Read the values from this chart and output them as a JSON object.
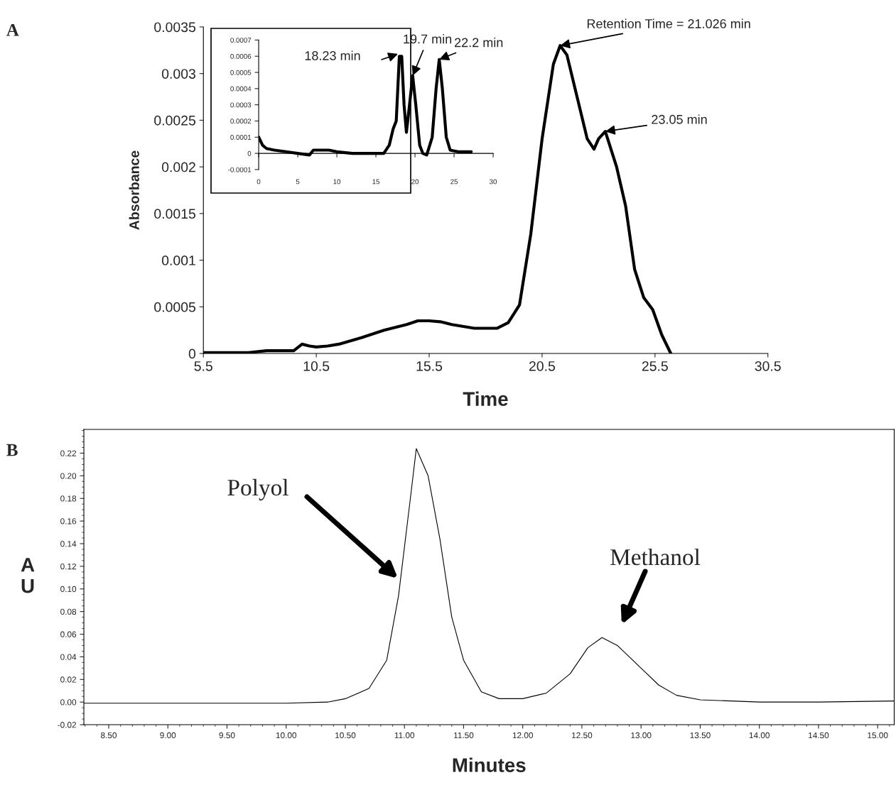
{
  "chart_data": [
    {
      "type": "line",
      "xlabel": "Time",
      "ylabel": "Absorbance",
      "xlim": [
        5.5,
        30.5
      ],
      "ylim": [
        0,
        0.0035
      ],
      "xticks": [
        5.5,
        10.5,
        15.5,
        20.5,
        25.5,
        30.5
      ],
      "yticks": [
        0,
        0.0005,
        0.001,
        0.0015,
        0.002,
        0.0025,
        0.003,
        0.0035
      ],
      "series": [
        {
          "color": "#000000",
          "x": [
            5.5,
            6.5,
            7.5,
            8.3,
            8.8,
            9.5,
            9.87,
            10.2,
            10.5,
            11.0,
            11.5,
            12.5,
            13.5,
            14.5,
            15.0,
            15.5,
            16.0,
            16.5,
            17.5,
            18.5,
            19.0,
            19.5,
            20.0,
            20.5,
            21.0,
            21.3,
            21.6,
            22.0,
            22.5,
            22.8,
            23.0,
            23.3,
            23.8,
            24.2,
            24.6,
            25.0,
            25.4,
            25.8,
            26.2
          ],
          "values": [
            1e-05,
            1e-05,
            1e-05,
            3e-05,
            3e-05,
            3e-05,
            0.0001,
            8e-05,
            7e-05,
            8e-05,
            0.0001,
            0.00017,
            0.00025,
            0.00031,
            0.00035,
            0.00035,
            0.00034,
            0.00031,
            0.00027,
            0.00027,
            0.00033,
            0.00052,
            0.00128,
            0.0023,
            0.0031,
            0.0033,
            0.0032,
            0.0028,
            0.0023,
            0.00219,
            0.0023,
            0.00238,
            0.002,
            0.00158,
            0.0009,
            0.0006,
            0.00047,
            0.0002,
            0
          ]
        }
      ],
      "annotations": [
        "A",
        {
          "text": "Retention Time = 21.026 min",
          "x": 21.3,
          "y": 0.0033
        },
        {
          "text": "23.05 min",
          "x": 23.3,
          "y": 0.00238
        }
      ]
    },
    {
      "type": "line",
      "xlim": [
        0,
        30
      ],
      "ylim": [
        -0.0001,
        0.0007
      ],
      "xticks": [
        0,
        5,
        10,
        15,
        20,
        25,
        30
      ],
      "yticks": [
        -0.0001,
        0,
        0.0001,
        0.0002,
        0.0003,
        0.0004,
        0.0005,
        0.0006,
        0.0007
      ],
      "series": [
        {
          "color": "#000000",
          "x": [
            0,
            0.5,
            1,
            2,
            3.5,
            5,
            6.5,
            7,
            8,
            9,
            10,
            12,
            14,
            16,
            16.7,
            17.2,
            17.6,
            18.0,
            18.3,
            18.6,
            18.9,
            19.3,
            19.7,
            20.1,
            20.6,
            21.0,
            21.5,
            22.2,
            22.7,
            23.1,
            23.5,
            24.0,
            24.5,
            25.5,
            27.2
          ],
          "values": [
            0.0001,
            5e-05,
            3e-05,
            2e-05,
            1e-05,
            0,
            -1e-05,
            2e-05,
            2e-05,
            2e-05,
            1e-05,
            0,
            0,
            0,
            5e-05,
            0.00015,
            0.0002,
            0.0006,
            0.0006,
            0.0003,
            0.00013,
            0.0003,
            0.00048,
            0.0003,
            5e-05,
            0,
            -1e-05,
            0.0001,
            0.0004,
            0.00058,
            0.0004,
            0.0001,
            2e-05,
            1e-05,
            1e-05
          ]
        }
      ],
      "annotations": [
        "18.23 min",
        {
          "text": "19.7 min",
          "x": 19.7,
          "y": 0.00048
        },
        {
          "text": "22.2 min",
          "x": 23.1,
          "y": 0.00058
        }
      ]
    },
    {
      "type": "line",
      "xlabel": "Minutes",
      "ylabel": "A\nU",
      "xlim": [
        8.29,
        15.14
      ],
      "ylim": [
        -0.02,
        0.241
      ],
      "xticks": [
        {
          "value": 8.5,
          "label": "8.50"
        },
        {
          "value": 9.0,
          "label": "9.00"
        },
        {
          "value": 9.5,
          "label": "9.50"
        },
        {
          "value": 10.0,
          "label": "10.00"
        },
        {
          "value": 10.5,
          "label": "10.50"
        },
        {
          "value": 11.0,
          "label": "11.00"
        },
        {
          "value": 11.5,
          "label": "11.50"
        },
        {
          "value": 12.0,
          "label": "12.00"
        },
        {
          "value": 12.5,
          "label": "12.50"
        },
        {
          "value": 13.0,
          "label": "13.00"
        },
        {
          "value": 13.5,
          "label": "13.50"
        },
        {
          "value": 14.0,
          "label": "14.00"
        },
        {
          "value": 14.5,
          "label": "14.50"
        },
        {
          "value": 15.0,
          "label": "15.00"
        }
      ],
      "yticks": [
        {
          "value": -0.02,
          "label": "-0.02"
        },
        {
          "value": 0,
          "label": "0.00"
        },
        {
          "value": 0.02,
          "label": "0.02"
        },
        {
          "value": 0.04,
          "label": "0.04"
        },
        {
          "value": 0.06,
          "label": "0.06"
        },
        {
          "value": 0.08,
          "label": "0.08"
        },
        {
          "value": 0.1,
          "label": "0.10"
        },
        {
          "value": 0.12,
          "label": "0.12"
        },
        {
          "value": 0.14,
          "label": "0.14"
        },
        {
          "value": 0.16,
          "label": "0.16"
        },
        {
          "value": 0.18,
          "label": "0.18"
        },
        {
          "value": 0.2,
          "label": "0.20"
        },
        {
          "value": 0.22,
          "label": "0.22"
        }
      ],
      "series": [
        {
          "color": "#000000",
          "x": [
            8.29,
            8.6,
            9.0,
            9.5,
            10.0,
            10.35,
            10.5,
            10.7,
            10.85,
            10.95,
            11.05,
            11.1,
            11.2,
            11.3,
            11.4,
            11.5,
            11.65,
            11.8,
            12.0,
            12.2,
            12.4,
            12.55,
            12.67,
            12.8,
            12.9,
            13.0,
            13.15,
            13.3,
            13.5,
            14.0,
            14.5,
            15.14
          ],
          "values": [
            -0.001,
            -0.001,
            -0.001,
            -0.001,
            -0.001,
            0,
            0.003,
            0.012,
            0.037,
            0.094,
            0.18,
            0.224,
            0.2,
            0.144,
            0.075,
            0.037,
            0.009,
            0.003,
            0.003,
            0.008,
            0.025,
            0.048,
            0.057,
            0.05,
            0.04,
            0.03,
            0.015,
            0.006,
            0.002,
            0,
            0,
            0.001
          ]
        }
      ],
      "annotations": [
        "B",
        "Polyol",
        "Methanol"
      ]
    }
  ]
}
